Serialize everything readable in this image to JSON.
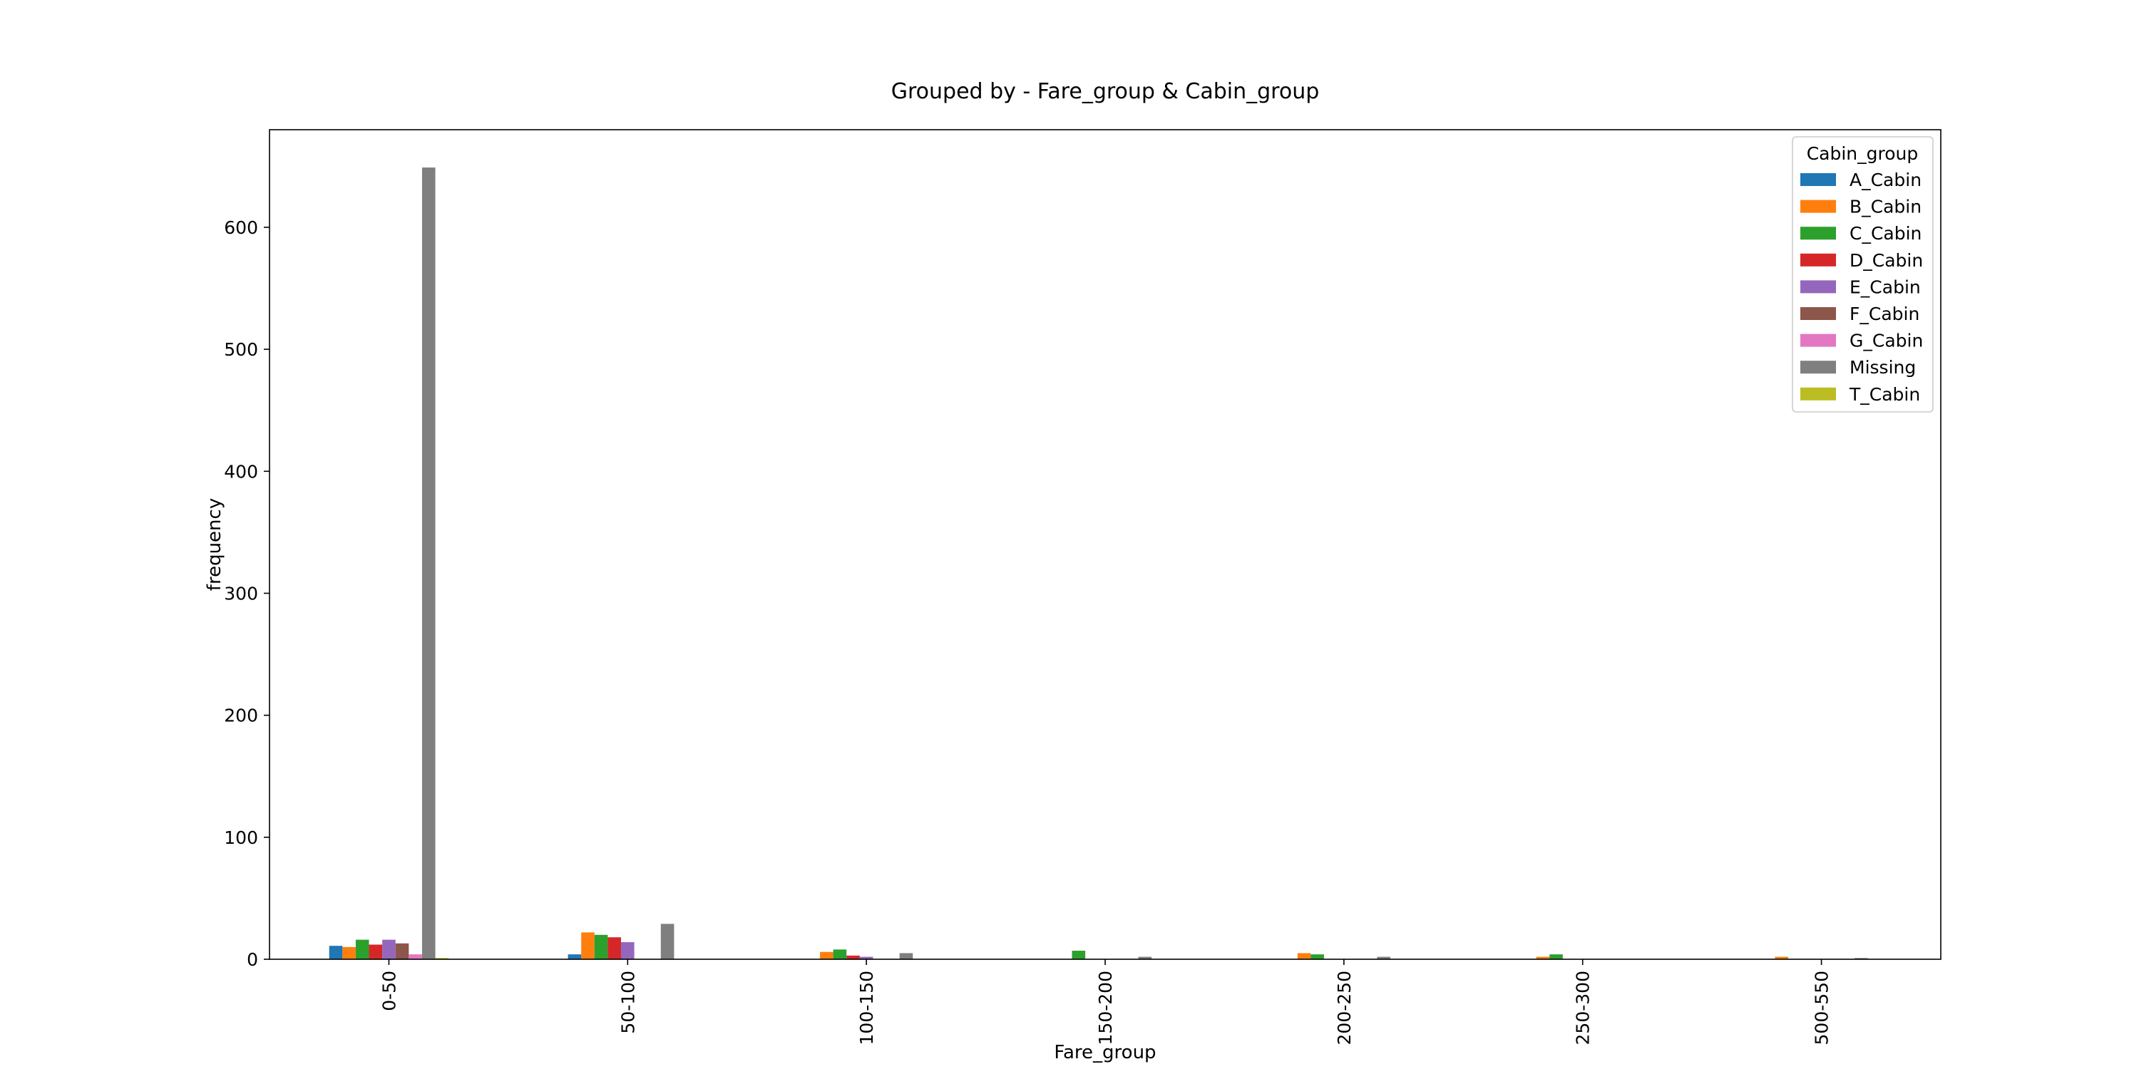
{
  "chart_data": {
    "type": "bar",
    "title": "Grouped by - Fare_group & Cabin_group",
    "xlabel": "Fare_group",
    "ylabel": "frequency",
    "categories": [
      "0-50",
      "50-100",
      "100-150",
      "150-200",
      "200-250",
      "250-300",
      "500-550"
    ],
    "ylim": [
      0,
      680
    ],
    "yticks": [
      0,
      100,
      200,
      300,
      400,
      500,
      600
    ],
    "grid": false,
    "legend": {
      "title": "Cabin_group",
      "placement": "top-right"
    },
    "series": [
      {
        "name": "A_Cabin",
        "color": "#1f77b4",
        "values": [
          11,
          4,
          0,
          0,
          0,
          0,
          0
        ]
      },
      {
        "name": "B_Cabin",
        "color": "#ff7f0e",
        "values": [
          10,
          22,
          6,
          0,
          5,
          2,
          2
        ]
      },
      {
        "name": "C_Cabin",
        "color": "#2ca02c",
        "values": [
          16,
          20,
          8,
          7,
          4,
          4,
          0
        ]
      },
      {
        "name": "D_Cabin",
        "color": "#d62728",
        "values": [
          12,
          18,
          3,
          0,
          0,
          0,
          0
        ]
      },
      {
        "name": "E_Cabin",
        "color": "#9467bd",
        "values": [
          16,
          14,
          2,
          0,
          0,
          0,
          0
        ]
      },
      {
        "name": "F_Cabin",
        "color": "#8c564b",
        "values": [
          13,
          0,
          0,
          0,
          0,
          0,
          0
        ]
      },
      {
        "name": "G_Cabin",
        "color": "#e377c2",
        "values": [
          4,
          0,
          0,
          0,
          0,
          0,
          0
        ]
      },
      {
        "name": "Missing",
        "color": "#7f7f7f",
        "values": [
          649,
          29,
          5,
          2,
          2,
          0,
          1
        ]
      },
      {
        "name": "T_Cabin",
        "color": "#bcbd22",
        "values": [
          1,
          0,
          0,
          0,
          0,
          0,
          0
        ]
      }
    ]
  }
}
